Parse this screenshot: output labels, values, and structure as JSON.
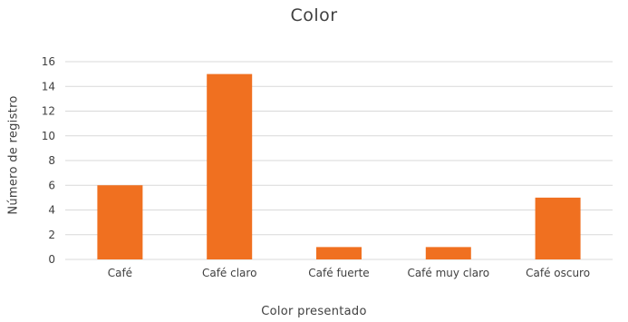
{
  "chart_data": {
    "type": "bar",
    "title": "Color",
    "xlabel": "Color presentado",
    "ylabel": "Número de registro",
    "categories": [
      "Café",
      "Café claro",
      "Café fuerte",
      "Café muy claro",
      "Café oscuro"
    ],
    "values": [
      6,
      15,
      1,
      1,
      5
    ],
    "ylim": [
      0,
      16
    ],
    "yticks": [
      0,
      2,
      4,
      6,
      8,
      10,
      12,
      14,
      16
    ],
    "grid": true,
    "legend": "none",
    "bar_color": "#F07020",
    "grid_color": "#D9D9D9"
  }
}
